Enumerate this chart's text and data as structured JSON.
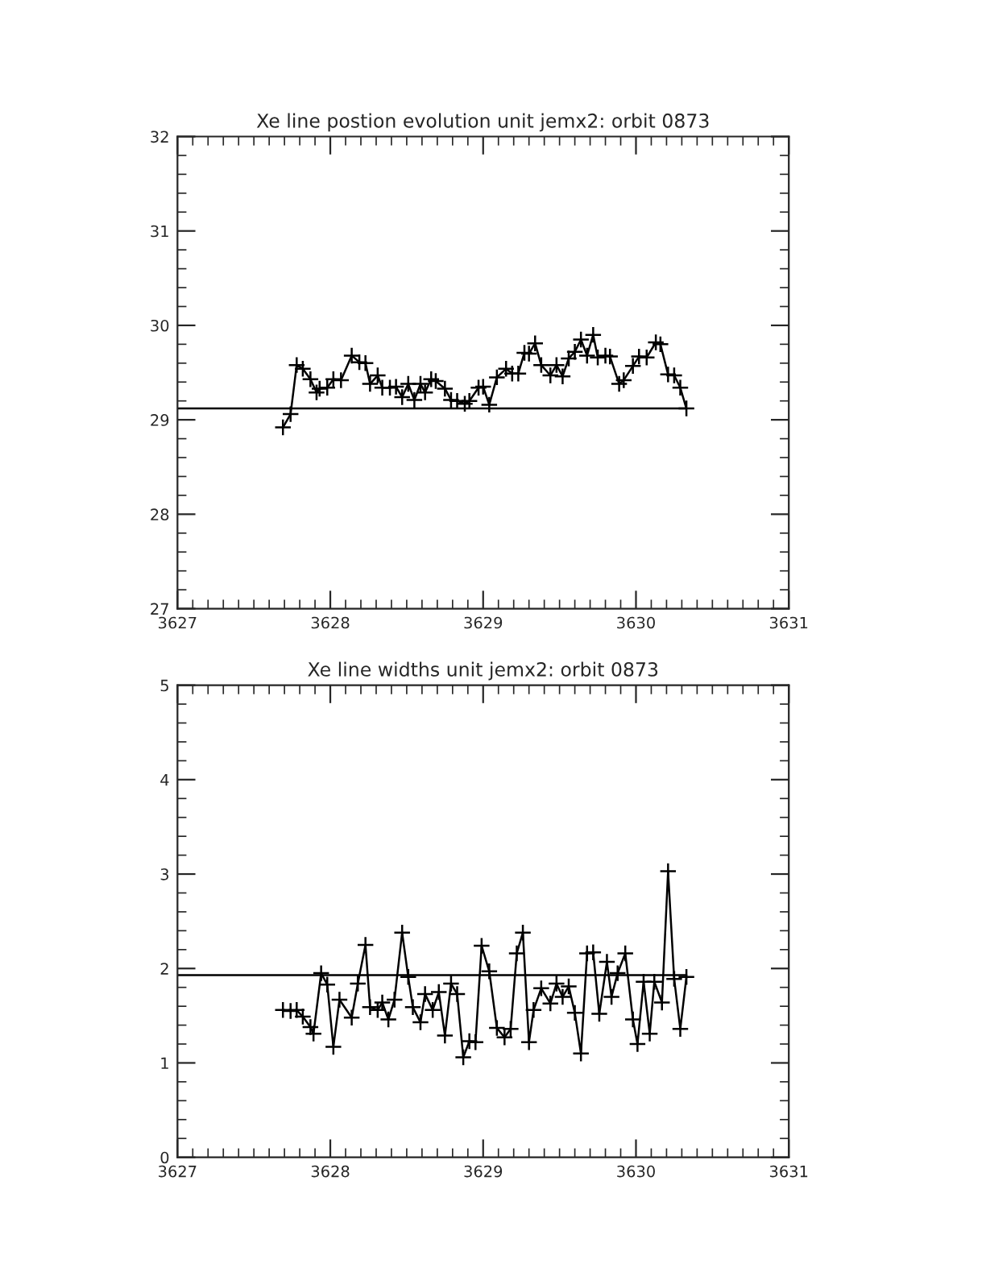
{
  "chart_data": [
    {
      "type": "line",
      "title": "Xe line postion evolution unit jemx2: orbit 0873",
      "marker": "cross",
      "line_style": "solid",
      "grid": false,
      "legend": false,
      "xlim": [
        3627,
        3631
      ],
      "xticks": [
        3627,
        3628,
        3629,
        3630,
        3631
      ],
      "ylim": [
        27,
        32
      ],
      "yticks": [
        27,
        28,
        29,
        30,
        31,
        32
      ],
      "series": [
        {
          "color": "#000000",
          "x": [
            3627.69,
            3627.74,
            3627.78,
            3627.82,
            3627.87,
            3627.91,
            3627.93,
            3627.98,
            3628.02,
            3628.07,
            3628.14,
            3628.19,
            3628.23,
            3628.26,
            3628.31,
            3628.34,
            3628.39,
            3628.43,
            3628.47,
            3628.51,
            3628.55,
            3628.59,
            3628.62,
            3628.66,
            3628.69,
            3628.75,
            3628.79,
            3628.83,
            3628.88,
            3628.91,
            3628.97,
            3629.0,
            3629.04,
            3629.09,
            3629.15,
            3629.19,
            3629.23,
            3629.27,
            3629.3,
            3629.34,
            3629.38,
            3629.44,
            3629.48,
            3629.52,
            3629.56,
            3629.6,
            3629.64,
            3629.68,
            3629.72,
            3629.75,
            3629.8,
            3629.83,
            3629.89,
            3629.92,
            3629.98,
            3630.02,
            3630.07,
            3630.13,
            3630.16,
            3630.21,
            3630.25,
            3630.29,
            3630.33
          ],
          "values": [
            28.92,
            29.06,
            29.58,
            29.54,
            29.43,
            29.29,
            29.33,
            29.34,
            29.43,
            29.42,
            29.68,
            29.61,
            29.6,
            29.38,
            29.47,
            29.34,
            29.34,
            29.35,
            29.24,
            29.38,
            29.21,
            29.38,
            29.29,
            29.43,
            29.41,
            29.33,
            29.21,
            29.2,
            29.17,
            29.2,
            29.34,
            29.35,
            29.16,
            29.45,
            29.54,
            29.49,
            29.49,
            29.71,
            29.7,
            29.81,
            29.58,
            29.47,
            29.58,
            29.46,
            29.65,
            29.72,
            29.85,
            29.68,
            29.9,
            29.66,
            29.68,
            29.67,
            29.38,
            29.42,
            29.57,
            29.67,
            29.66,
            29.82,
            29.8,
            29.48,
            29.47,
            29.34,
            29.12
          ]
        },
        {
          "type": "line",
          "marker": "none",
          "color": "#000000",
          "x": [
            3627,
            3630.33
          ],
          "values": [
            29.12,
            29.12
          ]
        }
      ]
    },
    {
      "type": "line",
      "title": "Xe line widths unit jemx2: orbit 0873",
      "marker": "cross",
      "line_style": "solid",
      "grid": false,
      "legend": false,
      "xlim": [
        3627,
        3631
      ],
      "xticks": [
        3627,
        3628,
        3629,
        3630,
        3631
      ],
      "ylim": [
        0,
        5
      ],
      "yticks": [
        0,
        1,
        2,
        3,
        4,
        5
      ],
      "series": [
        {
          "color": "#000000",
          "x": [
            3627.69,
            3627.74,
            3627.78,
            3627.82,
            3627.87,
            3627.89,
            3627.94,
            3627.98,
            3628.02,
            3628.06,
            3628.14,
            3628.18,
            3628.23,
            3628.26,
            3628.31,
            3628.34,
            3628.38,
            3628.42,
            3628.47,
            3628.51,
            3628.54,
            3628.59,
            3628.62,
            3628.67,
            3628.71,
            3628.75,
            3628.79,
            3628.83,
            3628.87,
            3628.91,
            3628.95,
            3628.99,
            3629.04,
            3629.09,
            3629.14,
            3629.18,
            3629.22,
            3629.26,
            3629.3,
            3629.33,
            3629.38,
            3629.44,
            3629.48,
            3629.52,
            3629.56,
            3629.6,
            3629.64,
            3629.68,
            3629.72,
            3629.76,
            3629.81,
            3629.84,
            3629.88,
            3629.93,
            3629.98,
            3630.01,
            3630.05,
            3630.09,
            3630.12,
            3630.17,
            3630.21,
            3630.25,
            3630.29,
            3630.33
          ],
          "values": [
            1.56,
            1.55,
            1.56,
            1.49,
            1.38,
            1.31,
            1.95,
            1.83,
            1.17,
            1.67,
            1.48,
            1.84,
            2.25,
            1.59,
            1.56,
            1.64,
            1.46,
            1.67,
            2.38,
            1.91,
            1.59,
            1.43,
            1.73,
            1.56,
            1.75,
            1.29,
            1.84,
            1.73,
            1.06,
            1.23,
            1.22,
            2.24,
            1.97,
            1.37,
            1.27,
            1.36,
            2.16,
            2.38,
            1.22,
            1.56,
            1.79,
            1.63,
            1.84,
            1.7,
            1.81,
            1.53,
            1.1,
            2.16,
            2.17,
            1.52,
            2.07,
            1.7,
            1.95,
            2.16,
            1.46,
            1.2,
            1.86,
            1.31,
            1.86,
            1.64,
            3.03,
            1.89,
            1.36,
            1.91
          ]
        },
        {
          "type": "line",
          "marker": "none",
          "color": "#000000",
          "x": [
            3627,
            3630.33
          ],
          "values": [
            1.93,
            1.93
          ]
        }
      ]
    }
  ]
}
